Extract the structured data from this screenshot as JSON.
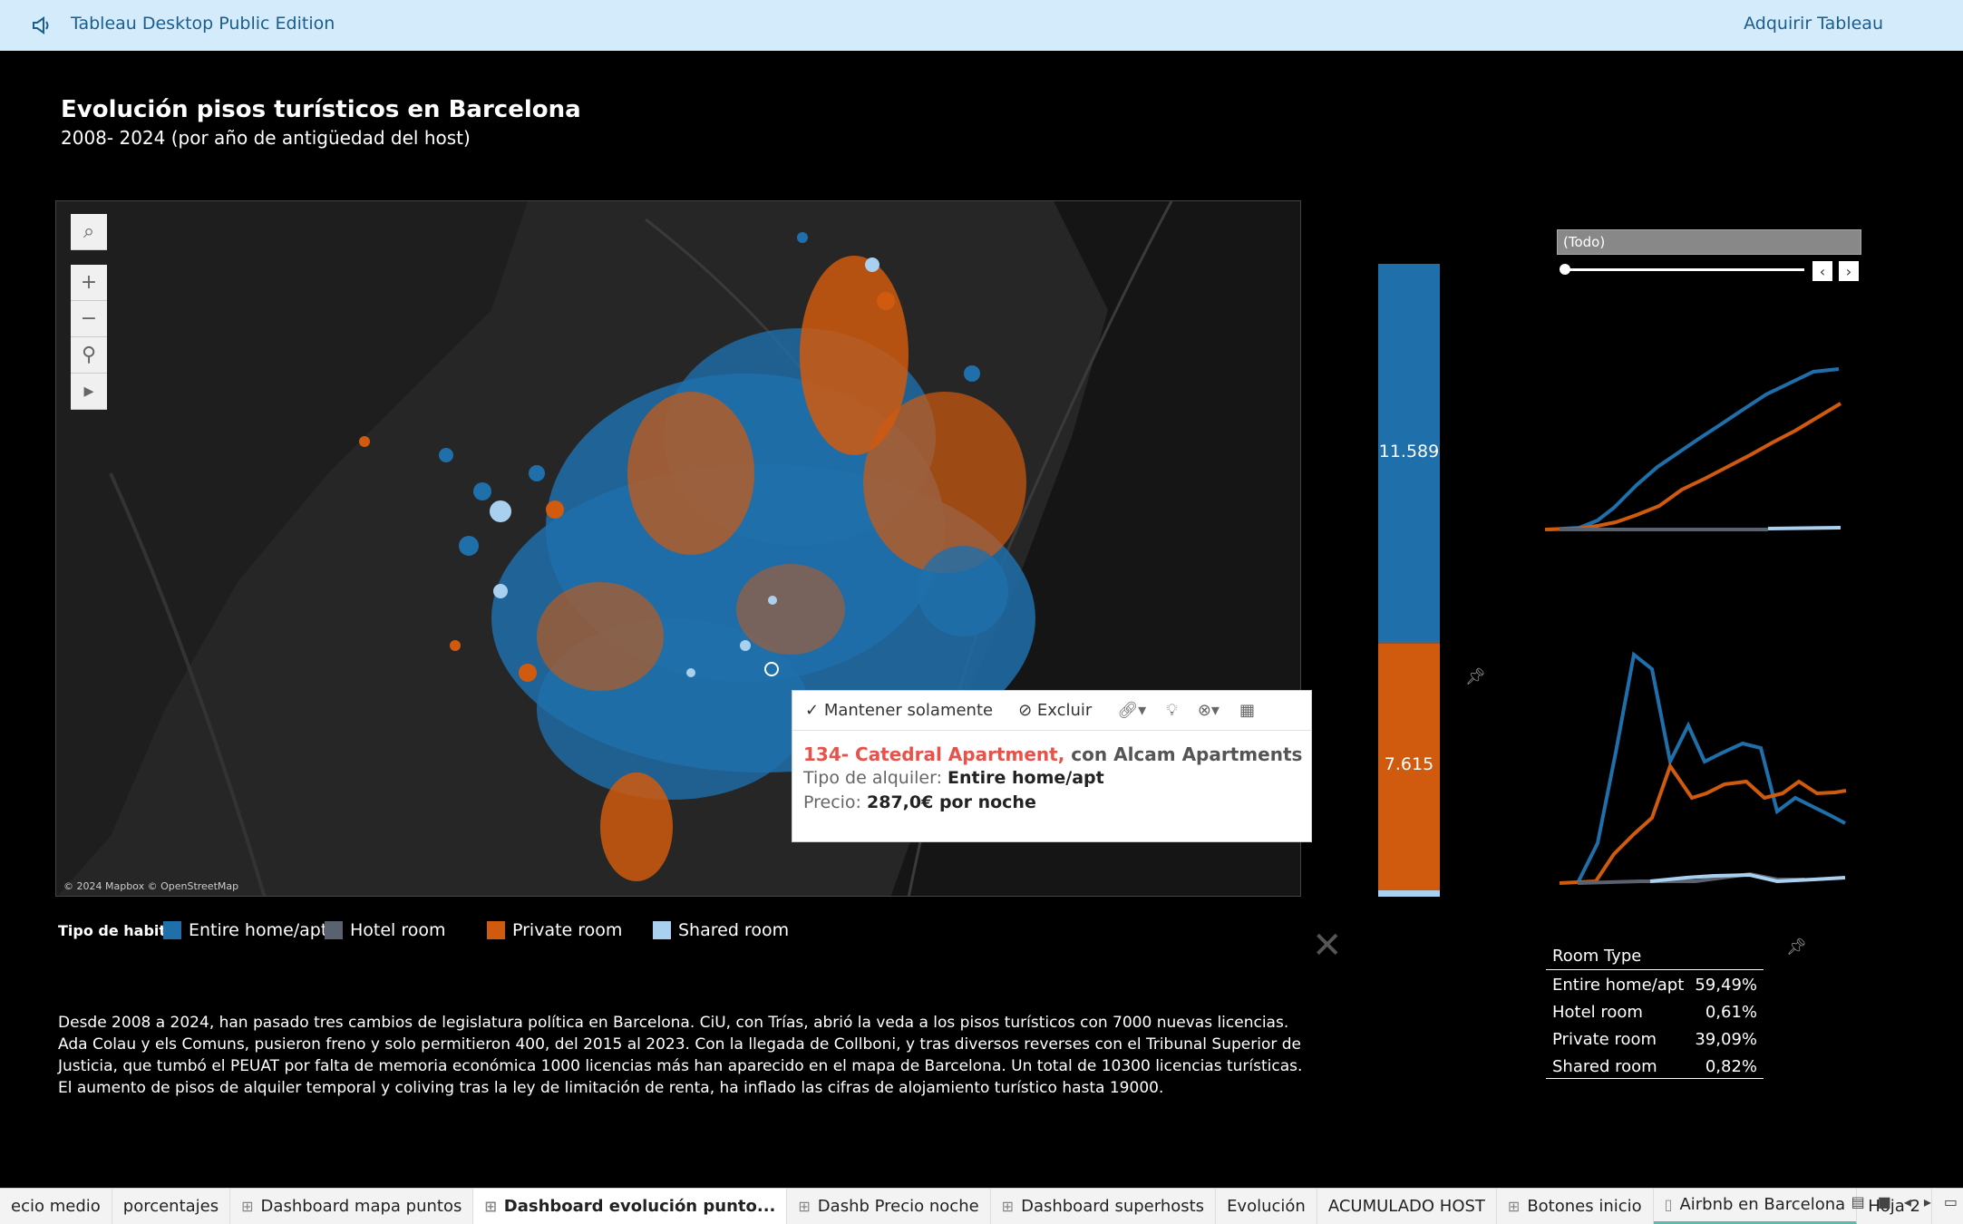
{
  "topbar": {
    "icon": "megaphone-icon",
    "app_title": "Tableau Desktop Public Edition",
    "acquire_label": "Adquirir Tableau"
  },
  "dashboard": {
    "title": "Evolución pisos turísticos en Barcelona",
    "subtitle": "2008- 2024 (por año de antigüedad del host)"
  },
  "map": {
    "attribution": "© 2024 Mapbox © OpenStreetMap",
    "tools": [
      "search-icon",
      "zoom-in-icon",
      "zoom-out-icon",
      "pin-icon",
      "play-icon"
    ]
  },
  "tooltip": {
    "keep_only": "Mantener solamente",
    "exclude": "Excluir",
    "listing_name": "134- Catedral Apartment,",
    "listing_host": "con Alcam Apartments",
    "type_label": "Tipo de alquiler:",
    "type_value": "Entire home/apt",
    "price_label": "Precio:",
    "price_value": "287,0€ por noche"
  },
  "bar": {
    "entire_label": "11.589",
    "private_label": "7.615"
  },
  "filter": {
    "value": "(Todo)"
  },
  "legend": {
    "title": "Tipo de habit..",
    "items": [
      {
        "label": "Entire home/apt",
        "color": "#1f6fab"
      },
      {
        "label": "Hotel room",
        "color": "#5a6270"
      },
      {
        "label": "Private room",
        "color": "#d05a0e"
      },
      {
        "label": "Shared room",
        "color": "#a9d0ef"
      }
    ]
  },
  "stats": {
    "header": "Room Type",
    "rows": [
      {
        "label": "Entire home/apt",
        "value": "59,49%"
      },
      {
        "label": "Hotel room",
        "value": "0,61%"
      },
      {
        "label": "Private room",
        "value": "39,09%"
      },
      {
        "label": "Shared room",
        "value": "0,82%"
      }
    ]
  },
  "description": "Desde 2008 a 2024, han pasado tres cambios de legislatura política en Barcelona. CiU, con Trías, abrió la veda a los pisos turísticos con 7000 nuevas licencias. Ada Colau y els Comuns, pusieron freno y solo permitieron 400, del 2015 al 2023. Con la llegada de Collboni, y tras diversos reverses con el Tribunal Superior de Justicia, que tumbó el PEUAT por falta de memoria económica 1000 licencias más han aparecido en el mapa de Barcelona. Un total de 10300 licencias turísticas. El aumento de pisos de alquiler temporal y coliving tras la ley de limitación de renta, ha inflado las cifras de alojamiento turístico hasta 19000.",
  "tabs": [
    {
      "label": "ecio medio",
      "icon": ""
    },
    {
      "label": "porcentajes",
      "icon": ""
    },
    {
      "label": "Dashboard mapa puntos",
      "icon": "dashboard-icon"
    },
    {
      "label": "Dashboard evolución punto...",
      "icon": "dashboard-icon"
    },
    {
      "label": "Dashb Precio noche",
      "icon": "dashboard-icon"
    },
    {
      "label": "Dashboard superhosts",
      "icon": "dashboard-icon"
    },
    {
      "label": "Evolución",
      "icon": ""
    },
    {
      "label": "ACUMULADO HOST",
      "icon": ""
    },
    {
      "label": "Botones inicio",
      "icon": "dashboard-icon"
    },
    {
      "label": "Airbnb en Barcelona",
      "icon": "story-icon"
    },
    {
      "label": "Hoja 2",
      "icon": ""
    }
  ]
}
